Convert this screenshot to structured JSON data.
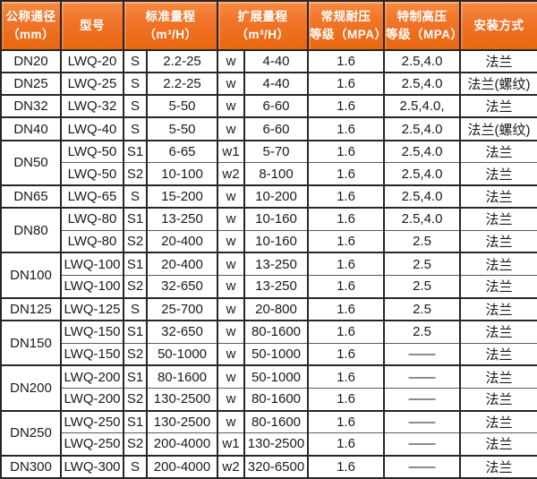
{
  "colors": {
    "header_orange": "#f0742a",
    "header_orange_light": "#f78c41",
    "header_orange_dark": "#e9670f",
    "header_text": "#ffffff",
    "body_text": "#1a1a1a",
    "border_dark": "#262626",
    "border_thin": "#5a5a5a"
  },
  "table": {
    "headers": [
      {
        "text": "公称通径\n（mm）"
      },
      {
        "text": "型号"
      },
      {
        "text": "标准量程\n（m³/H）"
      },
      {
        "text": "扩展量程\n（m³/H）"
      },
      {
        "text": "常规耐压\n等级（MPA）"
      },
      {
        "text": "特制高压\n等级（MPA）"
      },
      {
        "text": "安装方式"
      }
    ],
    "groups": [
      {
        "dn": "DN20",
        "rows": [
          [
            "LWQ-20",
            "S",
            "2.2-25",
            "w",
            "4-40",
            "1.6",
            "2.5,4.0",
            "法兰"
          ],
          null
        ]
      },
      {
        "dn": "DN25",
        "rows": [
          [
            "LWQ-25",
            "S",
            "2.2-25",
            "w",
            "4-40",
            "1.6",
            "2.5,4.0",
            "法兰(螺纹)"
          ]
        ]
      },
      {
        "dn": "DN32",
        "rows": [
          [
            "LWQ-32",
            "S",
            "5-50",
            "w",
            "6-60",
            "1.6",
            "2.5,4.0,",
            "法兰"
          ]
        ]
      },
      {
        "dn": "DN40",
        "rows": [
          [
            "LWQ-40",
            "S",
            "5-50",
            "w",
            "6-60",
            "1.6",
            "2.5,4.0",
            "法兰(螺纹)"
          ]
        ]
      },
      {
        "dn": "DN50",
        "rows": [
          [
            "LWQ-50",
            "S1",
            "6-65",
            "w1",
            "5-70",
            "1.6",
            "2.5,4.0",
            "法兰"
          ],
          [
            "LWQ-50",
            "S2",
            "10-100",
            "w2",
            "8-100",
            "1.6",
            "2.5,4.0",
            "法兰"
          ]
        ]
      },
      {
        "dn": "DN65",
        "rows": [
          [
            "LWQ-65",
            "S",
            "15-200",
            "w",
            "10-200",
            "1.6",
            "2.5,4.0",
            "法兰"
          ]
        ]
      },
      {
        "dn": "DN80",
        "rows": [
          [
            "LWQ-80",
            "S1",
            "13-250",
            "w",
            "10-160",
            "1.6",
            "2.5,4.0",
            "法兰"
          ],
          [
            "LWQ-80",
            "S2",
            "20-400",
            "w",
            "10-160",
            "1.6",
            "2.5",
            "法兰"
          ]
        ]
      },
      {
        "dn": "DN100",
        "rows": [
          [
            "LWQ-100",
            "S1",
            "20-400",
            "w",
            "13-250",
            "1.6",
            "2.5",
            "法兰"
          ],
          [
            "LWQ-100",
            "S2",
            "32-650",
            "w",
            "13-250",
            "1.6",
            "2.5",
            "法兰"
          ]
        ]
      },
      {
        "dn": "DN125",
        "rows": [
          [
            "LWQ-125",
            "S",
            "25-700",
            "w",
            "20-800",
            "1.6",
            "2.5",
            "法兰"
          ]
        ]
      },
      {
        "dn": "DN150",
        "rows": [
          [
            "LWQ-150",
            "S1",
            "32-650",
            "w",
            "80-1600",
            "1.6",
            "2.5",
            "法兰"
          ],
          [
            "LWQ-150",
            "S2",
            "50-1000",
            "w",
            "50-1000",
            "1.6",
            "——",
            "法兰"
          ]
        ]
      },
      {
        "dn": "DN200",
        "rows": [
          [
            "LWQ-200",
            "S1",
            "80-1600",
            "w",
            "50-1000",
            "1.6",
            "——",
            "法兰"
          ],
          [
            "LWQ-200",
            "S2",
            "130-2500",
            "w",
            "80-1600",
            "1.6",
            "——",
            "法兰"
          ]
        ]
      },
      {
        "dn": "DN250",
        "rows": [
          [
            "LWQ-250",
            "S1",
            "130-2500",
            "w",
            "80-1600",
            "1.6",
            "——",
            "法兰"
          ],
          [
            "LWQ-250",
            "S2",
            "200-4000",
            "w1",
            "130-2500",
            "1.6",
            "——",
            "法兰"
          ]
        ]
      },
      {
        "dn": "DN300",
        "rows": [
          [
            "LWQ-300",
            "S",
            "200-4000",
            "w2",
            "320-6500",
            "1.6",
            "——",
            "法兰"
          ]
        ]
      }
    ],
    "column_names": [
      "model-cell",
      "std-symbol-cell",
      "std-range-cell",
      "ext-symbol-cell",
      "ext-range-cell",
      "pressure-rating-cell",
      "high-pressure-rating-cell",
      "install-method-cell"
    ]
  }
}
